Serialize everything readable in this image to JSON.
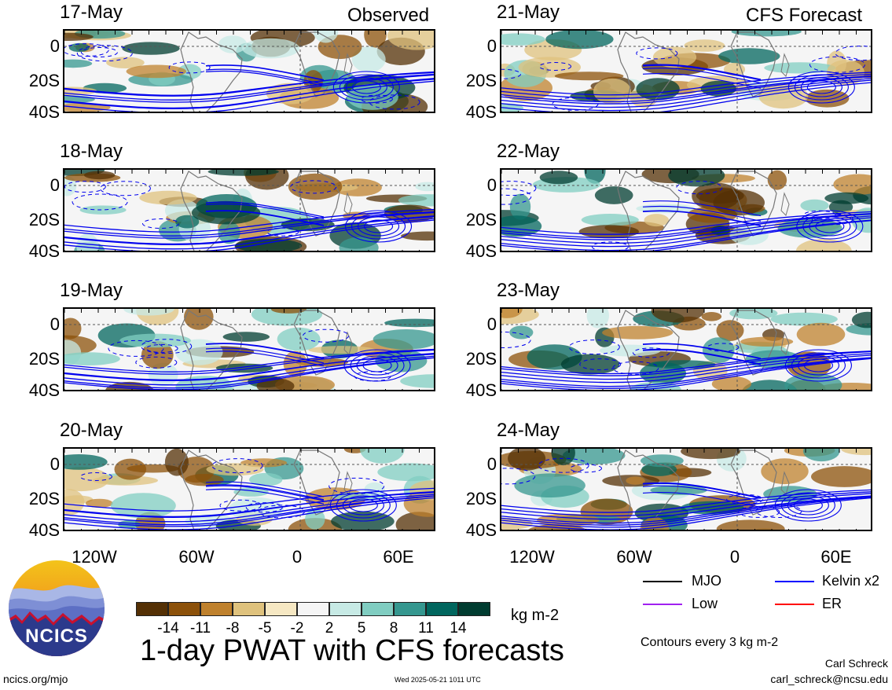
{
  "headers": {
    "observed": "Observed",
    "forecast": "CFS Forecast"
  },
  "panels_left": [
    {
      "date": "17-May"
    },
    {
      "date": "18-May"
    },
    {
      "date": "19-May"
    },
    {
      "date": "20-May"
    }
  ],
  "panels_right": [
    {
      "date": "21-May"
    },
    {
      "date": "22-May"
    },
    {
      "date": "23-May"
    },
    {
      "date": "24-May"
    }
  ],
  "y_ticks": [
    "0",
    "20S",
    "40S"
  ],
  "x_ticks": [
    "120W",
    "60W",
    "0",
    "60E"
  ],
  "legend": {
    "mjo": "MJO",
    "low": "Low",
    "kelvin": "Kelvin x2",
    "er": "ER",
    "colors": {
      "mjo": "#000000",
      "low": "#a020f0",
      "kelvin": "#0000ff",
      "er": "#ff0000"
    },
    "contours": "Contours every 3 kg m-2"
  },
  "colorbar": {
    "labels": [
      "-14",
      "-11",
      "-8",
      "-5",
      "-2",
      "2",
      "5",
      "8",
      "11",
      "14"
    ],
    "colors": [
      "#543005",
      "#8c510a",
      "#bf812d",
      "#dfc27d",
      "#f6e8c3",
      "#f5f5f5",
      "#c7eae5",
      "#80cdc1",
      "#35978f",
      "#01665e",
      "#003c30"
    ],
    "units": "kg m-2"
  },
  "title": "1-day PWAT with CFS forecasts",
  "logo": {
    "text": "NCICS"
  },
  "footer": {
    "site": "ncics.org/mjo",
    "timestamp": "Wed 2025-05-21 1011 UTC",
    "author": "Carl Schreck",
    "email": "carl_schreck@ncsu.edu"
  }
}
